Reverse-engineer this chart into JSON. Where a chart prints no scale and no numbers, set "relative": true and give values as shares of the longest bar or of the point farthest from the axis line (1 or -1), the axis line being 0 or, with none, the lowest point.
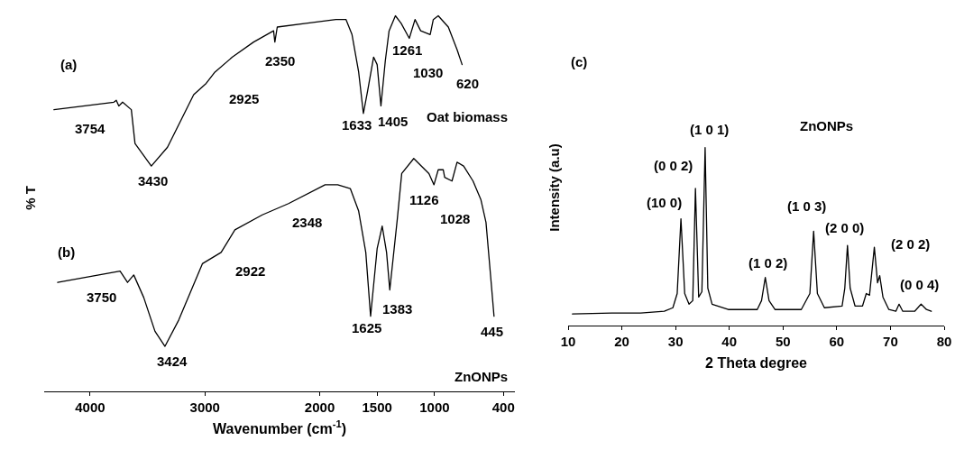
{
  "chart_data": [
    {
      "type": "line",
      "relative": true,
      "xlabel": "Wavenumber (cm$^{-1}$)",
      "ylabel": "% T",
      "xlim": [
        4400,
        300
      ],
      "xticks": [
        4000,
        3000,
        2000,
        1500,
        1000,
        400
      ],
      "series": [
        {
          "color": "#000000",
          "x": [
            4315,
            3793,
            3772,
            3750,
            3717,
            3641,
            3609,
            3467,
            3326,
            3098,
            2989,
            2913,
            2761,
            2576,
            2402,
            2391,
            2370,
            2120,
            1859,
            1771,
            1719,
            1661,
            1620,
            1583,
            1531,
            1500,
            1467,
            1429,
            1396,
            1341,
            1291,
            1220,
            1170,
            1121,
            1038,
            1011,
            968,
            880,
            804,
            760
          ],
          "values": [
            0.75,
            0.77,
            0.775,
            0.76,
            0.77,
            0.75,
            0.66,
            0.6,
            0.65,
            0.79,
            0.82,
            0.85,
            0.89,
            0.93,
            0.96,
            0.93,
            0.97,
            0.98,
            0.99,
            0.99,
            0.95,
            0.85,
            0.74,
            0.8,
            0.89,
            0.87,
            0.76,
            0.88,
            0.96,
            1,
            0.98,
            0.94,
            0.99,
            0.96,
            0.95,
            0.99,
            1,
            0.97,
            0.91,
            0.87
          ]
        },
        {
          "color": "#000000",
          "x": [
            4283,
            3739,
            3674,
            3620,
            3533,
            3435,
            3348,
            3228,
            3022,
            2859,
            2739,
            2500,
            2272,
            1953,
            1844,
            1734,
            1661,
            1599,
            1557,
            1500,
            1456,
            1418,
            1390,
            1324,
            1286,
            1181,
            1049,
            1005,
            968,
            924,
            912,
            848,
            804,
            747,
            665,
            596,
            552,
            507,
            482
          ],
          "values": [
            0.29,
            0.32,
            0.29,
            0.31,
            0.25,
            0.16,
            0.12,
            0.19,
            0.34,
            0.37,
            0.43,
            0.47,
            0.5,
            0.55,
            0.55,
            0.54,
            0.48,
            0.37,
            0.2,
            0.38,
            0.44,
            0.37,
            0.27,
            0.46,
            0.58,
            0.62,
            0.58,
            0.55,
            0.59,
            0.59,
            0.57,
            0.56,
            0.61,
            0.6,
            0.56,
            0.51,
            0.45,
            0.29,
            0.2
          ]
        }
      ],
      "annotations": [
        "(a)",
        "3754",
        "3430",
        "2925",
        "2350",
        "1633",
        "1405",
        "1261",
        "1030",
        "620",
        "Oat biomass",
        "(b)",
        "3750",
        "3424",
        "2922",
        "2348",
        "1625",
        "1383",
        "1126",
        "1028",
        "445",
        "ZnONPs"
      ]
    },
    {
      "type": "line",
      "relative": true,
      "xlabel": "2 Theta degree",
      "ylabel": "Intensity (a.u)",
      "xlim": [
        10,
        80
      ],
      "xticks": [
        10,
        20,
        30,
        40,
        50,
        60,
        70,
        80
      ],
      "series": [
        {
          "color": "#000000",
          "x": [
            10.8,
            18.1,
            23.5,
            27.9,
            29.5,
            30.3,
            31.0,
            31.7,
            32.5,
            33.2,
            33.7,
            34.3,
            34.9,
            35.5,
            36.0,
            36.8,
            39.8,
            45.2,
            46.0,
            46.7,
            47.4,
            48.5,
            53.4,
            55.0,
            55.7,
            56.4,
            57.7,
            61.0,
            61.5,
            62.0,
            62.5,
            63.4,
            64.8,
            65.5,
            66.1,
            67.0,
            67.6,
            68.0,
            68.6,
            69.7,
            71.0,
            71.6,
            72.3,
            74.5,
            75.7,
            76.7,
            77.6
          ],
          "values": [
            0.065,
            0.07,
            0.07,
            0.08,
            0.1,
            0.18,
            0.6,
            0.18,
            0.12,
            0.14,
            0.77,
            0.16,
            0.19,
            1,
            0.21,
            0.12,
            0.09,
            0.09,
            0.14,
            0.27,
            0.14,
            0.09,
            0.09,
            0.18,
            0.53,
            0.18,
            0.1,
            0.11,
            0.21,
            0.45,
            0.21,
            0.11,
            0.11,
            0.18,
            0.17,
            0.44,
            0.24,
            0.28,
            0.16,
            0.09,
            0.08,
            0.12,
            0.08,
            0.08,
            0.12,
            0.09,
            0.08
          ]
        }
      ],
      "annotations": [
        "(c)",
        "ZnONPs",
        "(10 0)",
        "(0 0 2)",
        "(1 0 1)",
        "(1 0 2)",
        "(1 0 3)",
        "(2 0 0)",
        "(2 0 2)",
        "(0 0 4)"
      ]
    }
  ]
}
